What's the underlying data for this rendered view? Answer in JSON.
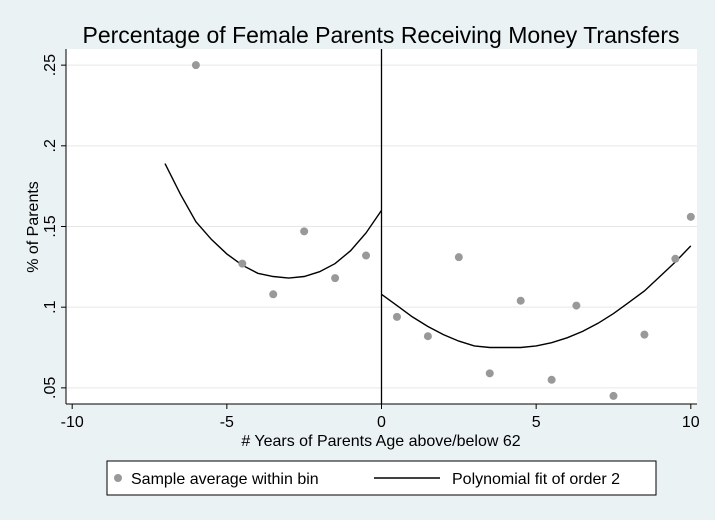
{
  "chart_data": {
    "type": "scatter",
    "title": "Percentage of Female Parents Receiving Money Transfers",
    "xlabel": "# Years of Parents Age above/below 62",
    "ylabel": "% of Parents",
    "xlim": [
      -10.2,
      10.2
    ],
    "ylim": [
      0.04,
      0.26
    ],
    "x_ticks": [
      {
        "value": -10,
        "label": "-10"
      },
      {
        "value": -5,
        "label": "-5"
      },
      {
        "value": 0,
        "label": "0"
      },
      {
        "value": 5,
        "label": "5"
      },
      {
        "value": 10,
        "label": "10"
      }
    ],
    "y_ticks": [
      {
        "value": 0.05,
        "label": ".05"
      },
      {
        "value": 0.1,
        "label": ".1"
      },
      {
        "value": 0.15,
        "label": ".15"
      },
      {
        "value": 0.2,
        "label": ".2"
      },
      {
        "value": 0.25,
        "label": ".25"
      }
    ],
    "grid": "horizontal",
    "cutoff_x": 0,
    "series": [
      {
        "name": "Sample average within bin",
        "kind": "scatter",
        "color": "#999999",
        "points": [
          {
            "x": -6,
            "y": 0.25
          },
          {
            "x": -4.5,
            "y": 0.127
          },
          {
            "x": -3.5,
            "y": 0.108
          },
          {
            "x": -2.5,
            "y": 0.147
          },
          {
            "x": -1.5,
            "y": 0.118
          },
          {
            "x": -0.5,
            "y": 0.132
          },
          {
            "x": 0.5,
            "y": 0.094
          },
          {
            "x": 1.5,
            "y": 0.082
          },
          {
            "x": 2.5,
            "y": 0.131
          },
          {
            "x": 3.5,
            "y": 0.059
          },
          {
            "x": 4.5,
            "y": 0.104
          },
          {
            "x": 5.5,
            "y": 0.055
          },
          {
            "x": 6.3,
            "y": 0.101
          },
          {
            "x": 7.5,
            "y": 0.045
          },
          {
            "x": 8.5,
            "y": 0.083
          },
          {
            "x": 9.5,
            "y": 0.13
          },
          {
            "x": 10,
            "y": 0.156
          }
        ]
      },
      {
        "name": "Polynomial fit of order 2",
        "kind": "line",
        "color": "#000000",
        "segments": [
          [
            {
              "x": -7,
              "y": 0.189
            },
            {
              "x": -6.5,
              "y": 0.17
            },
            {
              "x": -6,
              "y": 0.153
            },
            {
              "x": -5.5,
              "y": 0.142
            },
            {
              "x": -5,
              "y": 0.133
            },
            {
              "x": -4.5,
              "y": 0.126
            },
            {
              "x": -4,
              "y": 0.121
            },
            {
              "x": -3.5,
              "y": 0.119
            },
            {
              "x": -3,
              "y": 0.118
            },
            {
              "x": -2.5,
              "y": 0.119
            },
            {
              "x": -2,
              "y": 0.122
            },
            {
              "x": -1.5,
              "y": 0.127
            },
            {
              "x": -1,
              "y": 0.135
            },
            {
              "x": -0.5,
              "y": 0.146
            },
            {
              "x": 0,
              "y": 0.16
            }
          ],
          [
            {
              "x": 0,
              "y": 0.108
            },
            {
              "x": 0.5,
              "y": 0.101
            },
            {
              "x": 1,
              "y": 0.094
            },
            {
              "x": 1.5,
              "y": 0.088
            },
            {
              "x": 2,
              "y": 0.083
            },
            {
              "x": 2.5,
              "y": 0.079
            },
            {
              "x": 3,
              "y": 0.076
            },
            {
              "x": 3.5,
              "y": 0.075
            },
            {
              "x": 4,
              "y": 0.075
            },
            {
              "x": 4.5,
              "y": 0.075
            },
            {
              "x": 5,
              "y": 0.076
            },
            {
              "x": 5.5,
              "y": 0.078
            },
            {
              "x": 6,
              "y": 0.081
            },
            {
              "x": 6.5,
              "y": 0.085
            },
            {
              "x": 7,
              "y": 0.09
            },
            {
              "x": 7.5,
              "y": 0.096
            },
            {
              "x": 8,
              "y": 0.103
            },
            {
              "x": 8.5,
              "y": 0.11
            },
            {
              "x": 9,
              "y": 0.119
            },
            {
              "x": 9.5,
              "y": 0.128
            },
            {
              "x": 10,
              "y": 0.138
            }
          ]
        ]
      }
    ],
    "legend": {
      "position": "bottom",
      "entries": [
        "Sample average within bin",
        "Polynomial fit of order 2"
      ]
    },
    "colors": {
      "background": "#eaf2f3",
      "plot_background": "#ffffff",
      "grid": "#e6e6e6",
      "marker": "#999999",
      "line": "#000000"
    }
  }
}
